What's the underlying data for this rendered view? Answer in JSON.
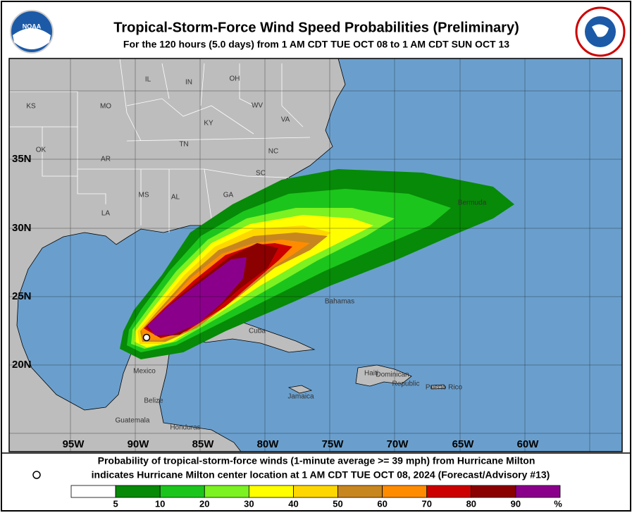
{
  "header": {
    "title": "Tropical-Storm-Force Wind Speed Probabilities (Preliminary)",
    "subtitle": "For the 120 hours (5.0 days) from 1 AM CDT TUE OCT 08 to 1 AM CDT SUN OCT 13"
  },
  "map": {
    "lat_labels": [
      "35N",
      "30N",
      "25N",
      "20N"
    ],
    "lon_labels": [
      "95W",
      "90W",
      "85W",
      "80W",
      "75W",
      "70W",
      "65W",
      "60W"
    ],
    "places": [
      "KS",
      "MO",
      "IL",
      "IN",
      "OH",
      "WV",
      "VA",
      "KY",
      "TN",
      "NC",
      "SC",
      "GA",
      "AL",
      "MS",
      "AR",
      "LA",
      "OK",
      "Bermuda",
      "Bahamas",
      "Cuba",
      "Mexico",
      "Haiti",
      "Dominican",
      "Republic",
      "Puerto Rico",
      "Jamaica",
      "Belize",
      "Guatemala",
      "Honduras"
    ]
  },
  "footer": {
    "line1": "Probability of tropical-storm-force winds (1-minute average >= 39 mph) from Hurricane Milton",
    "line2": "indicates Hurricane Milton center location at 1 AM CDT TUE OCT 08, 2024 (Forecast/Advisory #13)"
  },
  "legend": {
    "colors": [
      "#ffffff",
      "#078a07",
      "#1cc51c",
      "#7cf222",
      "#ffff00",
      "#ffd700",
      "#c8861f",
      "#ff8c00",
      "#cc0000",
      "#8b0000",
      "#8b008b"
    ],
    "ticks": [
      5,
      10,
      20,
      30,
      40,
      50,
      60,
      70,
      80,
      90
    ],
    "unit": "%"
  }
}
